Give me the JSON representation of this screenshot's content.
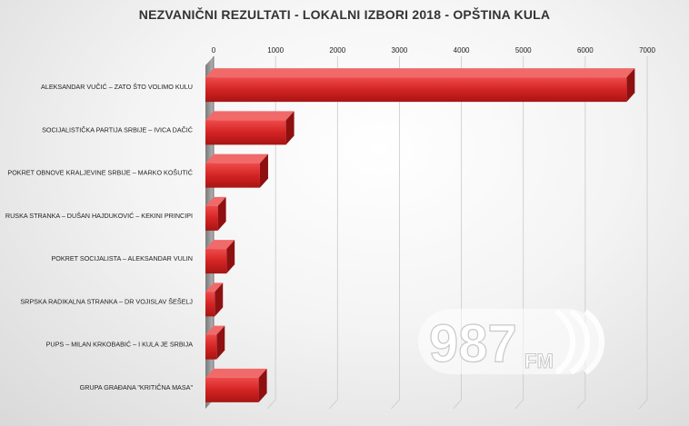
{
  "chart_data": {
    "type": "bar",
    "orientation": "horizontal",
    "title": "NEZVANIČNI REZULTATI - LOKALNI IZBORI 2018 - OPŠTINA KULA",
    "categories": [
      "ALEKSANDAR VUČIĆ – ZATO ŠTO VOLIMO KULU",
      "SOCIJALISTIČKA PARTIJA SRBIJE – IVICA DAČIĆ",
      "POKRET OBNOVE KRALJEVINE SRBIJE – MARKO KOŠUTIĆ",
      "RUSKA STRANKA – DUŠAN HAJDUKOVIĆ – KEKINI PRINCIPI",
      "POKRET SOCIJALISTA – ALEKSANDAR VULIN",
      "SRPSKA RADIKALNA STRANKA – DR VOJISLAV ŠEŠELJ",
      "PUPS – MILAN KRKOBABIĆ – I KULA JE SRBIJA",
      "GRUPA GRAĐANA \"KRITIČNA MASA\""
    ],
    "values": [
      6800,
      1300,
      880,
      200,
      340,
      150,
      180,
      860
    ],
    "xlim": [
      0,
      7000
    ],
    "xticks": [
      "0",
      "1000",
      "2000",
      "3000",
      "4000",
      "5000",
      "6000",
      "7000"
    ],
    "xaxis_position": "top",
    "grid": true,
    "bar_color": "#d42424",
    "style": "3d"
  },
  "watermark": {
    "number": "987",
    "unit": "FM"
  }
}
